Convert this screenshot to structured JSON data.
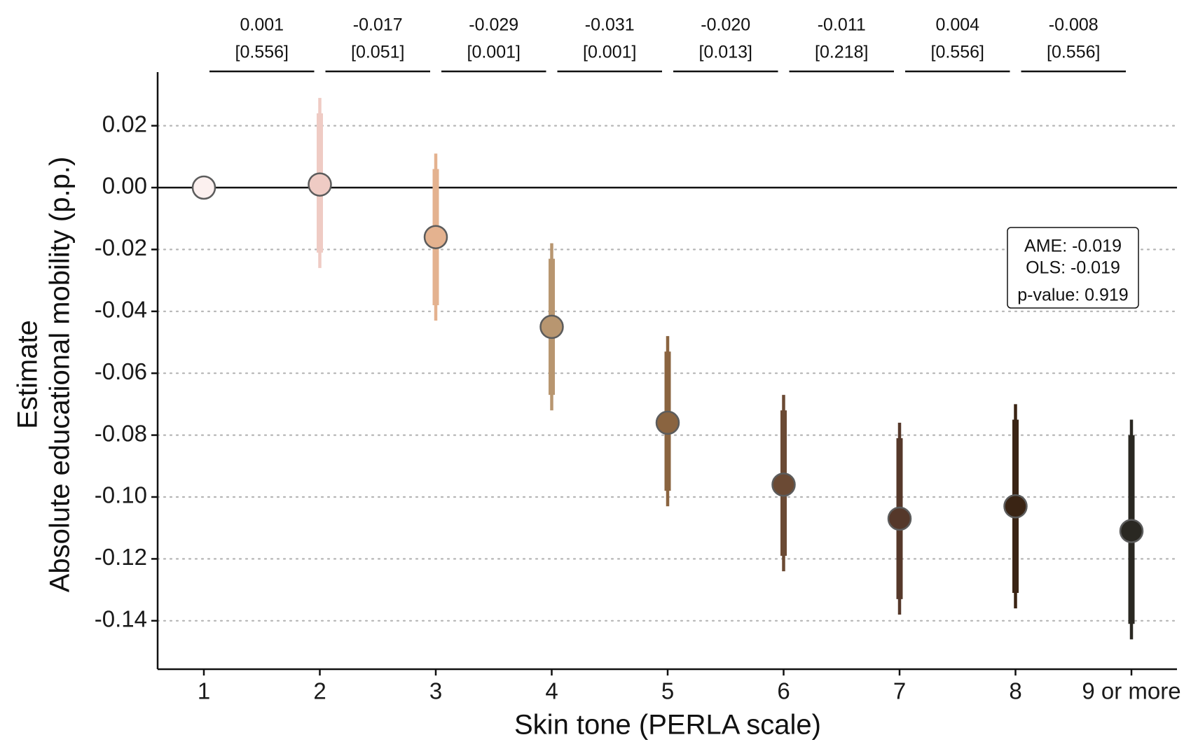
{
  "chart_data": {
    "type": "scatter",
    "subtype": "coefficient-plot",
    "xlabel": "Skin tone (PERLA scale)",
    "ylabel_line1": "Estimate",
    "ylabel_line2": "Absolute educational mobility (p.p.)",
    "categories": [
      "1",
      "2",
      "3",
      "4",
      "5",
      "6",
      "7",
      "8",
      "9 or more"
    ],
    "ylim": [
      -0.155,
      0.037
    ],
    "yticks": [
      0.02,
      0.0,
      -0.02,
      -0.04,
      -0.06,
      -0.08,
      -0.1,
      -0.12,
      -0.14
    ],
    "ytick_labels": [
      "0.02",
      "0.00",
      "-0.02",
      "-0.04",
      "-0.06",
      "-0.08",
      "-0.10",
      "-0.12",
      "-0.14"
    ],
    "grid": "horizontal-dotted",
    "reference_line": 0.0,
    "estimates": [
      0.0,
      0.001,
      -0.016,
      -0.045,
      -0.076,
      -0.096,
      -0.107,
      -0.103,
      -0.111
    ],
    "ci_outer_low": [
      null,
      -0.026,
      -0.043,
      -0.072,
      -0.103,
      -0.124,
      -0.138,
      -0.136,
      -0.146
    ],
    "ci_outer_high": [
      null,
      0.029,
      0.011,
      -0.018,
      -0.048,
      -0.067,
      -0.076,
      -0.07,
      -0.075
    ],
    "ci_inner_low": [
      null,
      -0.021,
      -0.038,
      -0.067,
      -0.098,
      -0.119,
      -0.133,
      -0.131,
      -0.141
    ],
    "ci_inner_high": [
      null,
      0.024,
      0.006,
      -0.023,
      -0.053,
      -0.072,
      -0.081,
      -0.075,
      -0.08
    ],
    "colors": [
      "#fcf0ef",
      "#efcbc4",
      "#e4b28f",
      "#b89670",
      "#8a6440",
      "#6b4a34",
      "#55382a",
      "#3a2414",
      "#2a2822"
    ],
    "differences": [
      {
        "value": "0.001",
        "pvalue": "[0.556]"
      },
      {
        "value": "-0.017",
        "pvalue": "[0.051]"
      },
      {
        "value": "-0.029",
        "pvalue": "[0.001]"
      },
      {
        "value": "-0.031",
        "pvalue": "[0.001]"
      },
      {
        "value": "-0.020",
        "pvalue": "[0.013]"
      },
      {
        "value": "-0.011",
        "pvalue": "[0.218]"
      },
      {
        "value": "0.004",
        "pvalue": "[0.556]"
      },
      {
        "value": "-0.008",
        "pvalue": "[0.556]"
      }
    ],
    "summary_box": [
      "AME: -0.019",
      "OLS: -0.019",
      "p-value: 0.919"
    ]
  }
}
